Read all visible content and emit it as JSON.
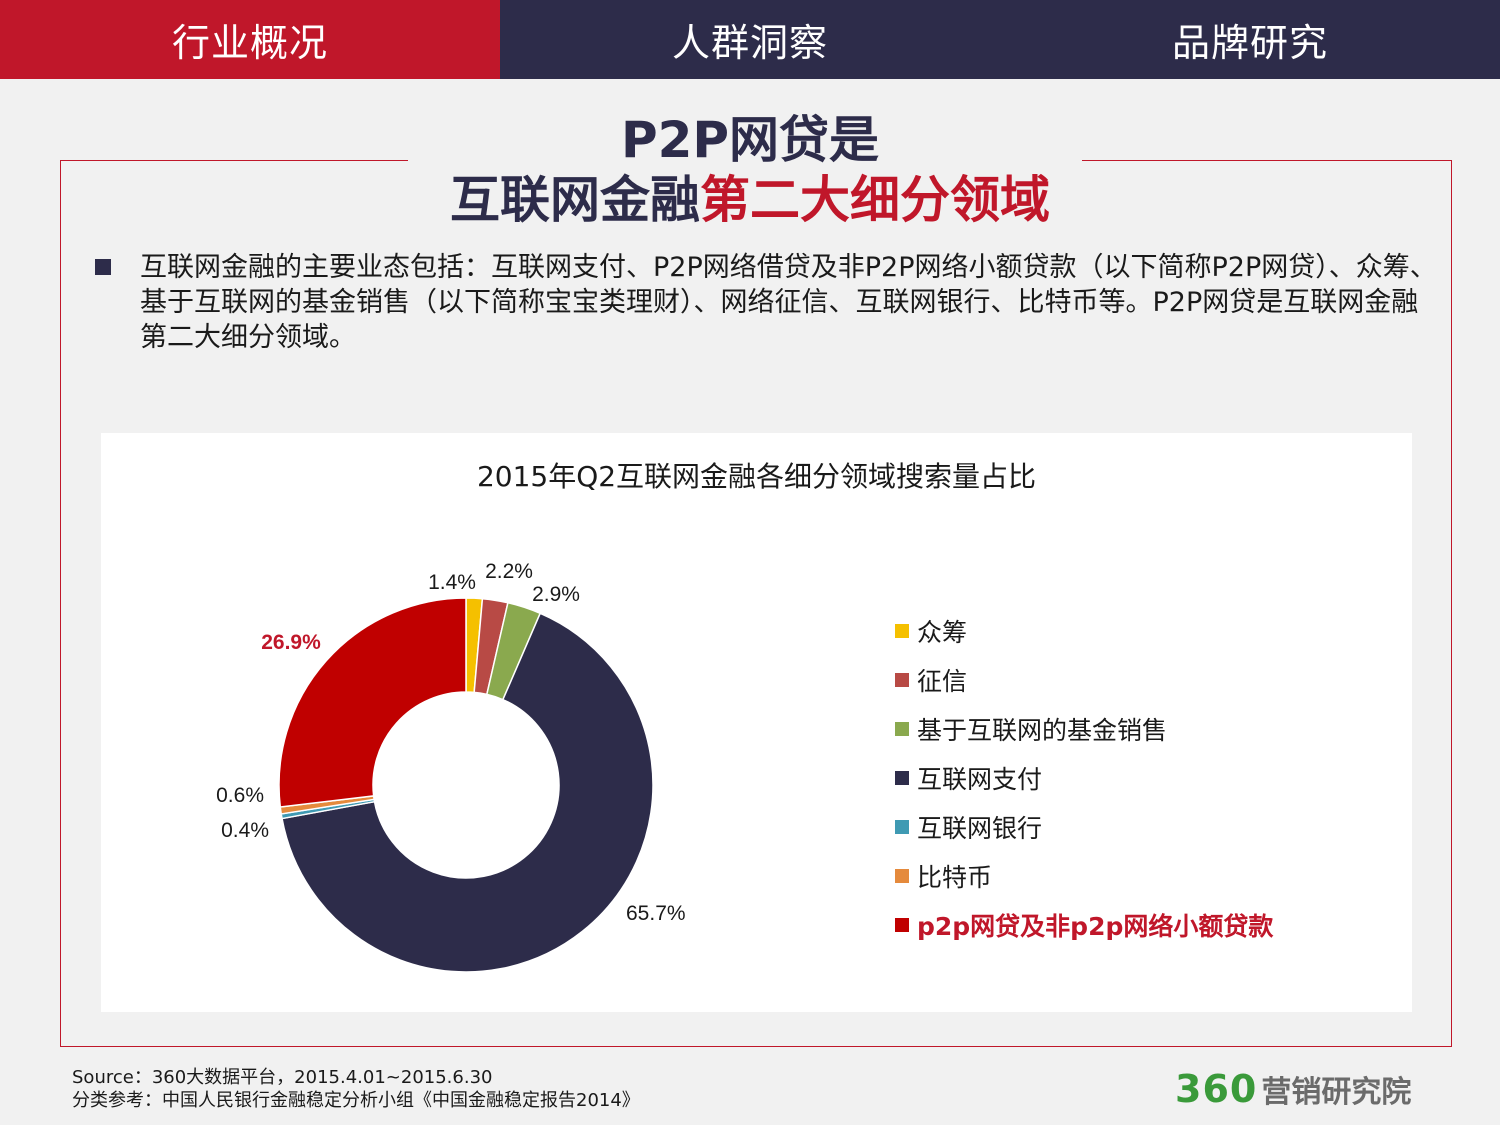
{
  "nav": {
    "tabs": [
      {
        "label": "行业概况",
        "active": true
      },
      {
        "label": "人群洞察",
        "active": false
      },
      {
        "label": "品牌研究",
        "active": false
      }
    ]
  },
  "title": {
    "line1": "P2P网贷是",
    "line2_plain": "互联网金融",
    "line2_highlight": "第二大细分领域"
  },
  "bullet": {
    "text": "互联网金融的主要业态包括：互联网支付、P2P网络借贷及非P2P网络小额贷款（以下简称P2P网贷）、众筹、基于互联网的基金销售（以下简称宝宝类理财）、网络征信、互联网银行、比特币等。P2P网贷是互联网金融第二大细分领域。"
  },
  "colors": {
    "accent_red": "#c0172a",
    "navy": "#2d2c4a",
    "brand_green": "#3a9a3a"
  },
  "chart_data": {
    "type": "pie",
    "variant": "donut",
    "title": "2015年Q2互联网金融各细分领域搜索量占比",
    "legend_position": "right",
    "slices": [
      {
        "name": "众筹",
        "value": 1.4,
        "label": "1.4%",
        "color": "#f5c000"
      },
      {
        "name": "征信",
        "value": 2.2,
        "label": "2.2%",
        "color": "#b84a45"
      },
      {
        "name": "基于互联网的基金销售",
        "value": 2.9,
        "label": "2.9%",
        "color": "#8aa94e"
      },
      {
        "name": "互联网支付",
        "value": 65.7,
        "label": "65.7%",
        "color": "#2d2c4a"
      },
      {
        "name": "互联网银行",
        "value": 0.4,
        "label": "0.4%",
        "color": "#3f9ab3"
      },
      {
        "name": "比特币",
        "value": 0.6,
        "label": "0.6%",
        "color": "#e58a3c"
      },
      {
        "name": "p2p网贷及非p2p网络小额贷款",
        "value": 26.9,
        "label": "26.9%",
        "color": "#c00000",
        "highlight": true
      }
    ]
  },
  "footer": {
    "source_line": "Source：360大数据平台，2015.4.01~2015.6.30",
    "ref_line": "分类参考：中国人民银行金融稳定分析小组《中国金融稳定报告2014》",
    "brand_number": "360",
    "brand_text": "营销研究院"
  }
}
